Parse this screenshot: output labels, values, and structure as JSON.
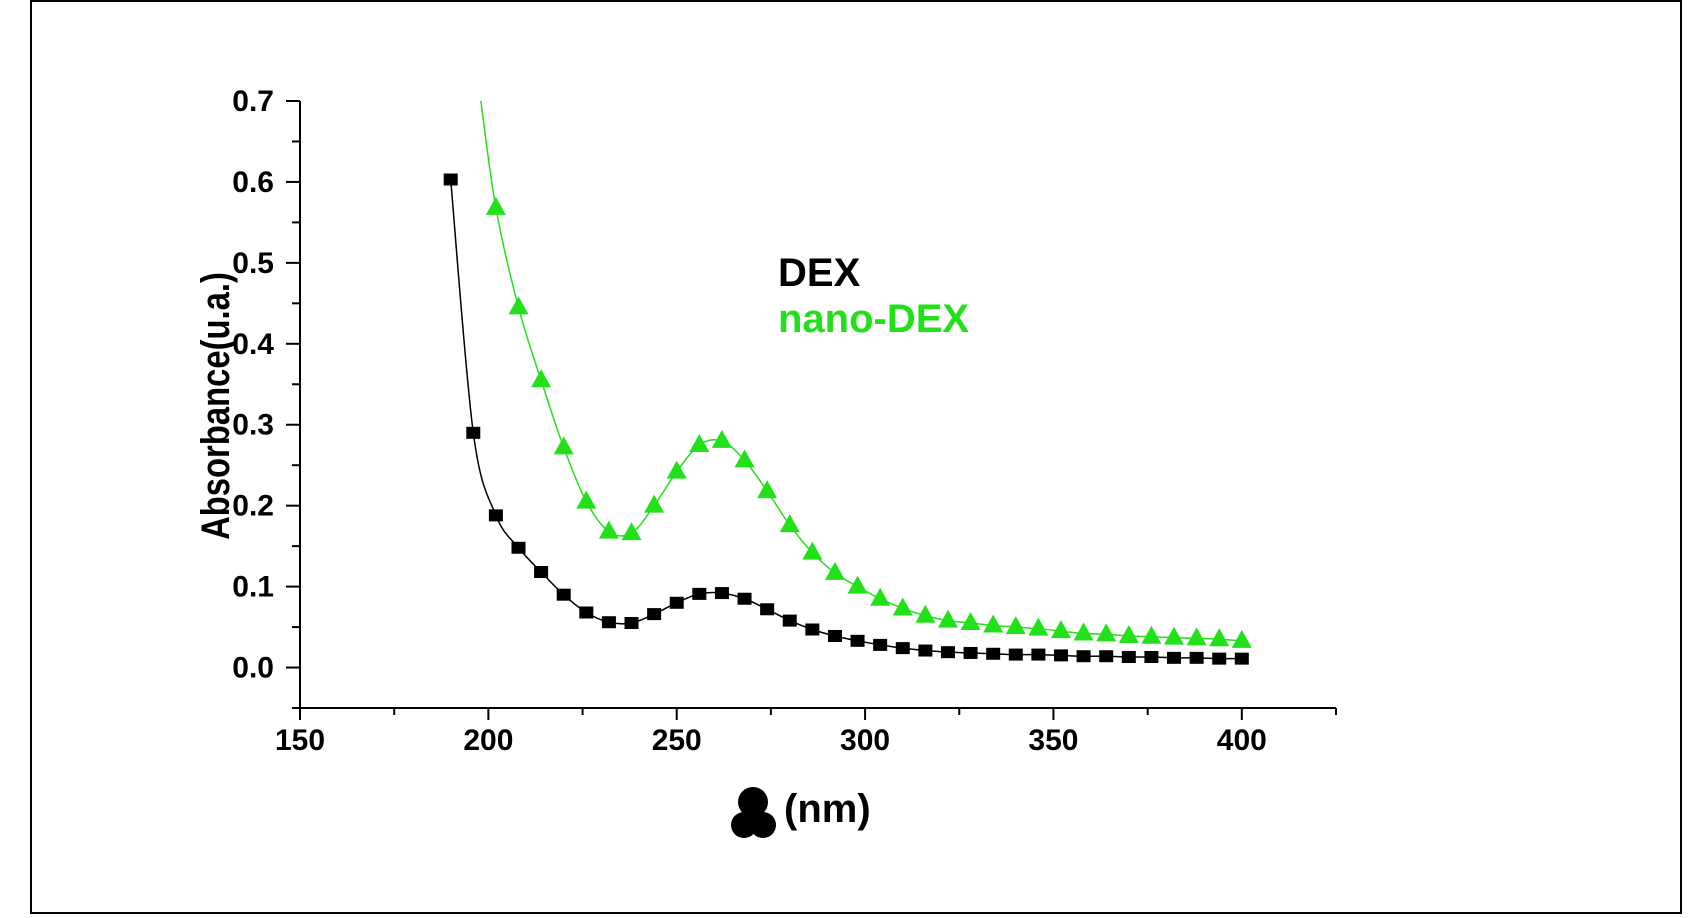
{
  "chart_data": {
    "type": "line",
    "xlabel": "(nm)",
    "ylabel": "Absorbance(u.a.)",
    "xlim": [
      150,
      425
    ],
    "ylim": [
      -0.05,
      0.7
    ],
    "xticks": [
      "150",
      "200",
      "250",
      "300",
      "350",
      "400"
    ],
    "yticks": [
      "0.0",
      "0.1",
      "0.2",
      "0.3",
      "0.4",
      "0.5",
      "0.6",
      "0.7"
    ],
    "legend_position": "upper-middle",
    "grid": false,
    "series": [
      {
        "name": "DEX",
        "color": "#000000",
        "marker": "square",
        "x": [
          190,
          196,
          202,
          208,
          214,
          220,
          226,
          232,
          238,
          244,
          250,
          256,
          262,
          268,
          274,
          280,
          286,
          292,
          298,
          304,
          310,
          316,
          322,
          328,
          334,
          340,
          346,
          352,
          358,
          364,
          370,
          376,
          382,
          388,
          394,
          400
        ],
        "y": [
          0.603,
          0.29,
          0.188,
          0.148,
          0.118,
          0.09,
          0.068,
          0.056,
          0.055,
          0.066,
          0.08,
          0.091,
          0.092,
          0.085,
          0.072,
          0.058,
          0.047,
          0.039,
          0.033,
          0.028,
          0.024,
          0.021,
          0.019,
          0.018,
          0.017,
          0.016,
          0.016,
          0.015,
          0.014,
          0.014,
          0.013,
          0.013,
          0.012,
          0.012,
          0.011,
          0.011
        ]
      },
      {
        "name": "nano-DEX",
        "color": "#22e01a",
        "marker": "triangle",
        "x": [
          202,
          208,
          214,
          220,
          226,
          232,
          238,
          244,
          250,
          256,
          262,
          268,
          274,
          280,
          286,
          292,
          298,
          304,
          310,
          316,
          322,
          328,
          334,
          340,
          346,
          352,
          358,
          364,
          370,
          376,
          382,
          388,
          394,
          400
        ],
        "y": [
          0.568,
          0.445,
          0.355,
          0.272,
          0.205,
          0.168,
          0.166,
          0.2,
          0.242,
          0.275,
          0.28,
          0.256,
          0.218,
          0.176,
          0.142,
          0.117,
          0.1,
          0.085,
          0.073,
          0.064,
          0.058,
          0.055,
          0.052,
          0.05,
          0.048,
          0.045,
          0.042,
          0.041,
          0.039,
          0.038,
          0.037,
          0.036,
          0.035,
          0.033
        ]
      }
    ]
  }
}
